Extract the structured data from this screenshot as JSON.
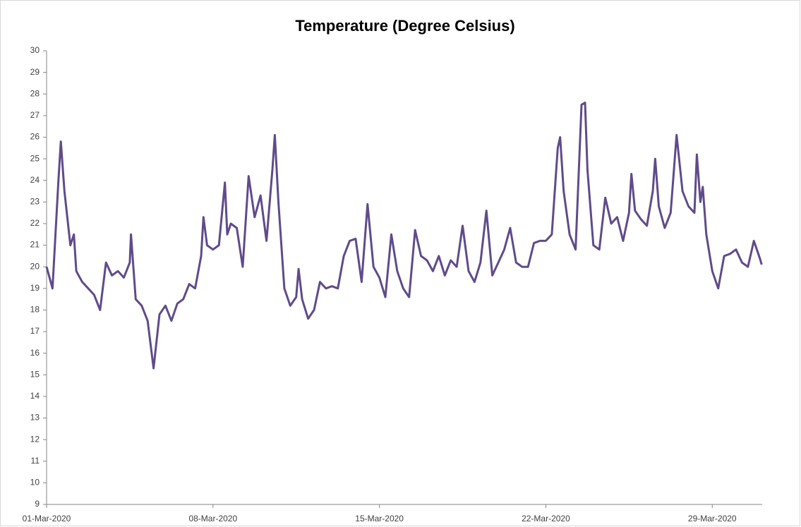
{
  "chart_data": {
    "type": "line",
    "title": "Temperature (Degree Celsius)",
    "x": [
      1.0,
      1.25,
      1.5,
      1.6,
      1.75,
      2.0,
      2.15,
      2.25,
      2.5,
      2.75,
      3.0,
      3.25,
      3.5,
      3.75,
      4.0,
      4.25,
      4.5,
      4.55,
      4.75,
      5.0,
      5.25,
      5.5,
      5.75,
      6.0,
      6.25,
      6.5,
      6.75,
      7.0,
      7.25,
      7.5,
      7.6,
      7.75,
      8.0,
      8.25,
      8.5,
      8.6,
      8.75,
      9.0,
      9.25,
      9.5,
      9.75,
      10.0,
      10.25,
      10.5,
      10.6,
      10.75,
      11.0,
      11.25,
      11.5,
      11.6,
      11.75,
      12.0,
      12.25,
      12.5,
      12.75,
      13.0,
      13.25,
      13.5,
      13.75,
      14.0,
      14.25,
      14.5,
      14.75,
      15.0,
      15.25,
      15.5,
      15.75,
      16.0,
      16.25,
      16.5,
      16.75,
      17.0,
      17.25,
      17.5,
      17.75,
      18.0,
      18.25,
      18.5,
      18.75,
      19.0,
      19.25,
      19.5,
      19.75,
      20.0,
      20.25,
      20.5,
      20.75,
      21.0,
      21.25,
      21.5,
      21.75,
      22.0,
      22.25,
      22.5,
      22.6,
      22.75,
      23.0,
      23.25,
      23.5,
      23.65,
      23.75,
      24.0,
      24.25,
      24.5,
      24.75,
      25.0,
      25.25,
      25.5,
      25.6,
      25.75,
      26.0,
      26.25,
      26.5,
      26.6,
      26.75,
      27.0,
      27.25,
      27.5,
      27.75,
      28.0,
      28.25,
      28.35,
      28.5,
      28.6,
      28.75,
      29.0,
      29.25,
      29.5,
      29.75,
      30.0,
      30.25,
      30.5,
      30.75,
      31.0,
      31.08
    ],
    "series": [
      {
        "color": "#5f4b8b",
        "values": [
          20.0,
          19.0,
          24.0,
          25.8,
          23.5,
          21.0,
          21.5,
          19.8,
          19.3,
          19.0,
          18.7,
          18.0,
          20.2,
          19.6,
          19.8,
          19.5,
          20.2,
          21.5,
          18.5,
          18.2,
          17.5,
          15.3,
          17.8,
          18.2,
          17.5,
          18.3,
          18.5,
          19.2,
          19.0,
          20.5,
          22.3,
          21.0,
          20.8,
          21.0,
          23.9,
          21.5,
          22.0,
          21.8,
          20.0,
          24.2,
          22.3,
          23.3,
          21.2,
          24.5,
          26.1,
          23.0,
          19.0,
          18.2,
          18.6,
          19.9,
          18.5,
          17.6,
          18.0,
          19.3,
          19.0,
          19.1,
          19.0,
          20.5,
          21.2,
          21.3,
          19.3,
          22.9,
          20.0,
          19.5,
          18.6,
          21.5,
          19.8,
          19.0,
          18.6,
          21.7,
          20.5,
          20.3,
          19.8,
          20.5,
          19.6,
          20.3,
          20.0,
          21.9,
          19.8,
          19.3,
          20.2,
          22.6,
          19.6,
          20.2,
          20.8,
          21.8,
          20.2,
          20.0,
          20.0,
          21.1,
          21.2,
          21.2,
          21.5,
          25.5,
          26.0,
          23.5,
          21.5,
          20.8,
          27.5,
          27.6,
          24.5,
          21.0,
          20.8,
          23.2,
          22.0,
          22.3,
          21.2,
          22.5,
          24.3,
          22.6,
          22.2,
          21.9,
          23.5,
          25.0,
          22.8,
          21.8,
          22.5,
          26.1,
          23.5,
          22.8,
          22.5,
          25.2,
          23.0,
          23.7,
          21.5,
          19.8,
          19.0,
          20.5,
          20.6,
          20.8,
          20.2,
          20.0,
          21.2,
          20.4,
          20.1
        ]
      }
    ],
    "xlim": [
      1,
      31.1
    ],
    "xticks": [
      {
        "value": 1,
        "label": "01-Mar-2020"
      },
      {
        "value": 8,
        "label": "08-Mar-2020"
      },
      {
        "value": 15,
        "label": "15-Mar-2020"
      },
      {
        "value": 22,
        "label": "22-Mar-2020"
      },
      {
        "value": 29,
        "label": "29-Mar-2020"
      }
    ],
    "ylim": [
      9,
      30
    ],
    "yticks": [
      9,
      10,
      11,
      12,
      13,
      14,
      15,
      16,
      17,
      18,
      19,
      20,
      21,
      22,
      23,
      24,
      25,
      26,
      27,
      28,
      29,
      30
    ],
    "grid": false
  }
}
